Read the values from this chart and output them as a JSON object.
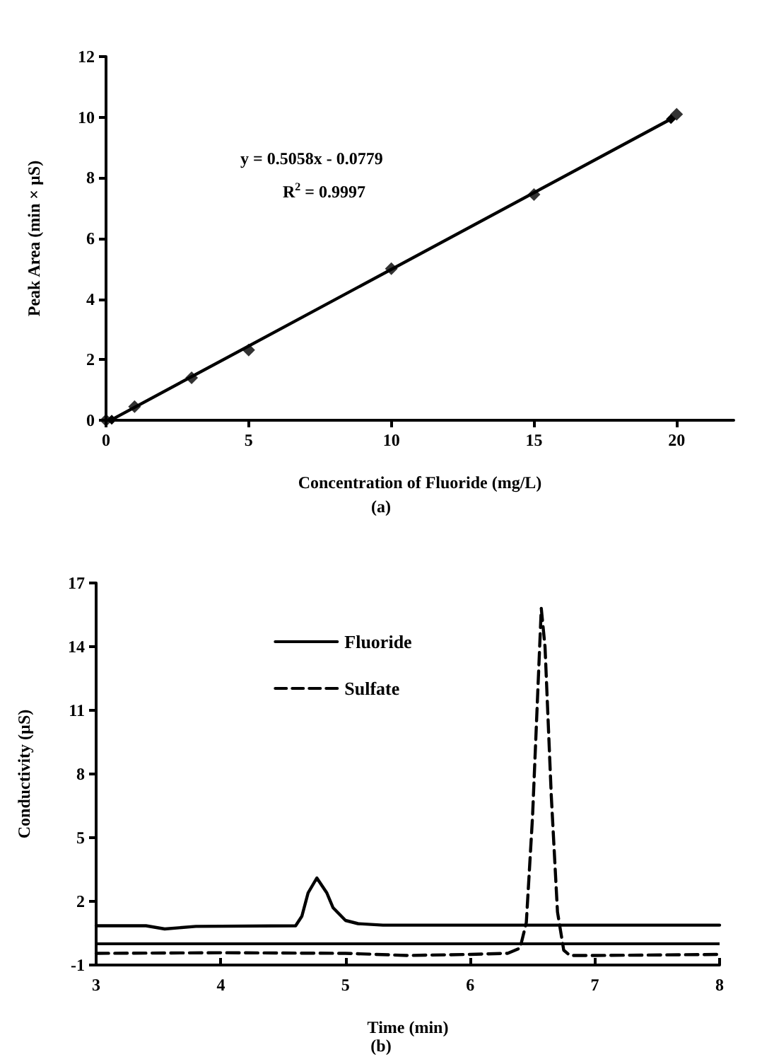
{
  "chart_data": [
    {
      "type": "scatter",
      "xlabel": "Concentration of Fluoride (mg/L)",
      "ylabel": "Peak Area (min × µS)",
      "xlim": [
        0,
        22
      ],
      "xticks": [
        0,
        5,
        10,
        15,
        20
      ],
      "ylim": [
        0,
        12
      ],
      "yticks": [
        0,
        2,
        4,
        6,
        8,
        10,
        12
      ],
      "grid": false,
      "legend": false,
      "marker": "diamond",
      "annotations": [
        "y = 0.5058x - 0.0779",
        "R$^{2}$ = 0.9997",
        "(a)"
      ],
      "series": [
        {
          "color": "#000000",
          "x": [
            0,
            1,
            3,
            5,
            10,
            15,
            20
          ],
          "values": [
            0,
            0.45,
            1.4,
            2.32,
            5.0,
            7.45,
            10.1
          ]
        },
        {
          "type": "line",
          "color": "#000000",
          "x": [
            0.2,
            19.8
          ],
          "values": [
            0.02,
            9.94
          ]
        }
      ]
    },
    {
      "type": "line",
      "xlabel": "Time (min)",
      "ylabel": "Conductivity (µS)",
      "xlim": [
        3,
        8
      ],
      "xticks": [
        3,
        4,
        5,
        6,
        7,
        8
      ],
      "ylim": [
        -1,
        17
      ],
      "yticks": [
        -1,
        2,
        5,
        8,
        11,
        14,
        17
      ],
      "grid": false,
      "legend": "top",
      "marker": "none",
      "annotations": [
        "(b)"
      ],
      "ref_lines": [
        {
          "axis": "y",
          "value": 0,
          "color": "#000000"
        }
      ],
      "series": [
        {
          "name": "Fluoride",
          "color": "#000000",
          "line_style": "solid",
          "x": [
            3,
            3.4,
            3.55,
            3.8,
            4.6,
            4.65,
            4.7,
            4.77,
            4.85,
            4.9,
            5.0,
            5.1,
            5.3,
            6,
            8
          ],
          "values": [
            0.85,
            0.85,
            0.7,
            0.82,
            0.85,
            1.3,
            2.4,
            3.1,
            2.4,
            1.7,
            1.1,
            0.95,
            0.88,
            0.88,
            0.88
          ]
        },
        {
          "name": "Sulfate",
          "color": "#000000",
          "line_style": "dashed",
          "x": [
            3,
            4,
            5,
            5.5,
            6,
            6.3,
            6.4,
            6.45,
            6.5,
            6.55,
            6.57,
            6.6,
            6.65,
            6.7,
            6.75,
            6.8,
            7,
            8
          ],
          "values": [
            -0.45,
            -0.42,
            -0.45,
            -0.55,
            -0.5,
            -0.45,
            -0.2,
            1,
            6,
            13,
            15.8,
            14,
            7,
            1.5,
            -0.3,
            -0.55,
            -0.55,
            -0.5
          ]
        }
      ]
    }
  ]
}
